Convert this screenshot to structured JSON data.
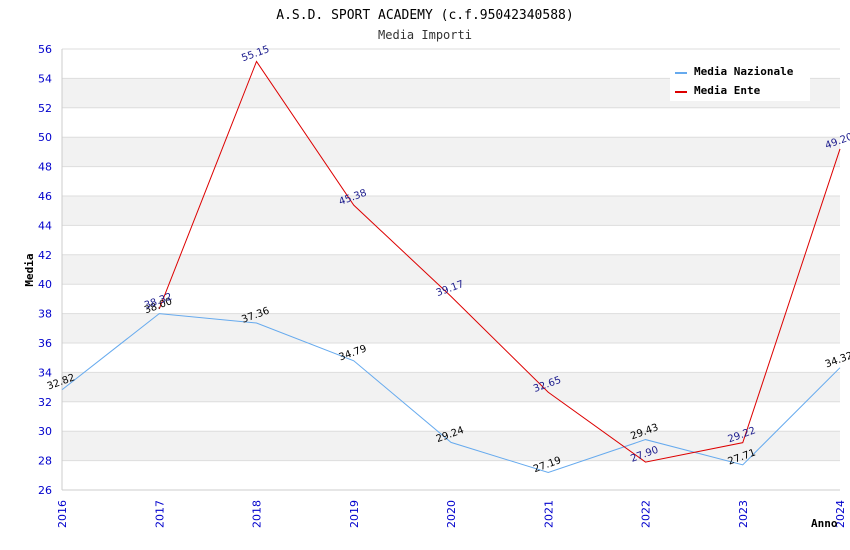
{
  "chart_data": {
    "type": "line",
    "title": "A.S.D. SPORT ACADEMY (c.f.95042340588)",
    "subtitle": "Media Importi",
    "xlabel": "Anno",
    "ylabel": "Media",
    "x": [
      "2016",
      "2017",
      "2018",
      "2019",
      "2020",
      "2021",
      "2022",
      "2023",
      "2024"
    ],
    "ylim": [
      26,
      56
    ],
    "yticks": [
      26,
      28,
      30,
      32,
      34,
      36,
      38,
      40,
      42,
      44,
      46,
      48,
      50,
      52,
      54,
      56
    ],
    "grid": true,
    "legend": "top-right",
    "series": [
      {
        "name": "Media Nazionale",
        "color": "#66aaee",
        "values": [
          32.82,
          38.0,
          37.36,
          34.79,
          29.24,
          27.19,
          29.43,
          27.71,
          34.32
        ],
        "labels": [
          "32.82",
          "38.00",
          "37.36",
          "34.79",
          "29.24",
          "27.19",
          "29.43",
          "27.71",
          "34.32"
        ]
      },
      {
        "name": "Media Ente",
        "color": "#dd0000",
        "values": [
          null,
          38.32,
          55.15,
          45.38,
          39.17,
          32.65,
          27.9,
          29.22,
          49.2
        ],
        "labels": [
          null,
          "38.32",
          "55.15",
          "45.38",
          "39.17",
          "32.65",
          "27.90",
          "29.22",
          "49.20"
        ]
      }
    ]
  }
}
